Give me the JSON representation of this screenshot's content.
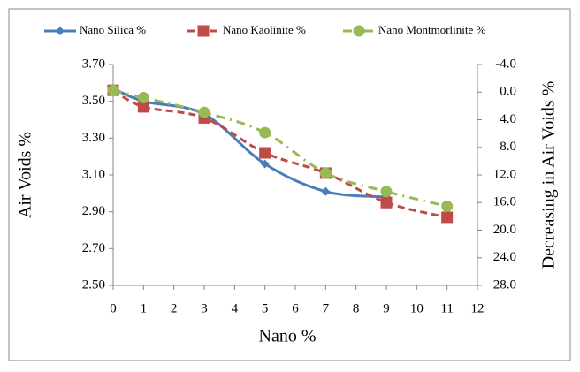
{
  "chart_data": {
    "type": "line",
    "x_label": "Nano %",
    "y_label": "Air Voids %",
    "y2_label": "Decreasing in Air Voids %",
    "x": [
      0,
      1,
      3,
      5,
      7,
      9,
      11
    ],
    "xlim": [
      0,
      12
    ],
    "xticks": [
      0,
      1,
      2,
      3,
      4,
      5,
      6,
      7,
      8,
      9,
      10,
      11,
      12
    ],
    "ylim": [
      2.5,
      3.7
    ],
    "yticks": [
      {
        "value": 2.5,
        "label": "2.50"
      },
      {
        "value": 2.7,
        "label": "2.70"
      },
      {
        "value": 2.9,
        "label": "2.90"
      },
      {
        "value": 3.1,
        "label": "3.10"
      },
      {
        "value": 3.3,
        "label": "3.30"
      },
      {
        "value": 3.5,
        "label": "3.50"
      },
      {
        "value": 3.7,
        "label": "3.70"
      }
    ],
    "y2lim": [
      28,
      -4
    ],
    "y2_inverted": true,
    "y2ticks": [
      {
        "value": -4,
        "label": "-4.0"
      },
      {
        "value": 0,
        "label": "0.0"
      },
      {
        "value": 4,
        "label": "4.0"
      },
      {
        "value": 8,
        "label": "8.0"
      },
      {
        "value": 12,
        "label": "12.0"
      },
      {
        "value": 16,
        "label": "16.0"
      },
      {
        "value": 20,
        "label": "20.0"
      },
      {
        "value": 24,
        "label": "24.0"
      },
      {
        "value": 28,
        "label": "28.0"
      }
    ],
    "legend": "top",
    "series": [
      {
        "name": "Nano Silica %",
        "color": "#4a7ebb",
        "marker": "diamond",
        "dash": "solid",
        "values": [
          3.57,
          3.5,
          3.43,
          3.16,
          3.01,
          2.98,
          null
        ]
      },
      {
        "name": "Nano Kaolinite %",
        "color": "#be4b48",
        "marker": "square",
        "dash": "dashed",
        "values": [
          3.56,
          3.47,
          3.41,
          3.22,
          3.11,
          2.95,
          2.87
        ]
      },
      {
        "name": "Nano Montmorlinite %",
        "color": "#98b954",
        "marker": "circle",
        "dash": "dashdot",
        "values": [
          3.56,
          3.52,
          3.44,
          3.33,
          3.11,
          3.01,
          2.93
        ]
      }
    ]
  }
}
